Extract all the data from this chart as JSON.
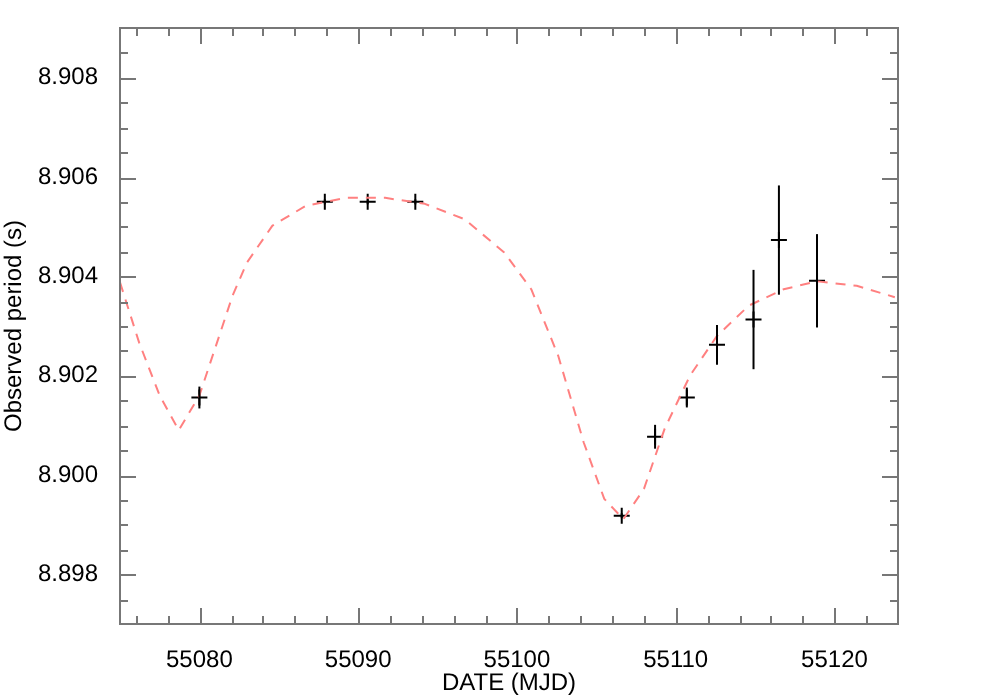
{
  "chart_data": {
    "type": "scatter",
    "xlabel": "DATE (MJD)",
    "ylabel": "Observed period (s)",
    "xlim": [
      55075,
      55124
    ],
    "ylim": [
      8.897,
      8.909
    ],
    "xticks": [
      {
        "value": 55076,
        "label": null
      },
      {
        "value": 55078,
        "label": null
      },
      55080,
      {
        "value": 55082,
        "label": null
      },
      {
        "value": 55084,
        "label": null
      },
      {
        "value": 55086,
        "label": null
      },
      {
        "value": 55088,
        "label": null
      },
      55090,
      {
        "value": 55092,
        "label": null
      },
      {
        "value": 55094,
        "label": null
      },
      {
        "value": 55096,
        "label": null
      },
      {
        "value": 55098,
        "label": null
      },
      55100,
      {
        "value": 55102,
        "label": null
      },
      {
        "value": 55104,
        "label": null
      },
      {
        "value": 55106,
        "label": null
      },
      {
        "value": 55108,
        "label": null
      },
      55110,
      {
        "value": 55112,
        "label": null
      },
      {
        "value": 55114,
        "label": null
      },
      {
        "value": 55116,
        "label": null
      },
      {
        "value": 55118,
        "label": null
      },
      55120,
      {
        "value": 55122,
        "label": null
      }
    ],
    "yticks": [
      {
        "value": 8.8975,
        "label": null
      },
      {
        "value": 8.898,
        "label": "8.898"
      },
      {
        "value": 8.8985,
        "label": null
      },
      {
        "value": 8.899,
        "label": null
      },
      {
        "value": 8.8995,
        "label": null
      },
      {
        "value": 8.9,
        "label": "8.900"
      },
      {
        "value": 8.9005,
        "label": null
      },
      {
        "value": 8.901,
        "label": null
      },
      {
        "value": 8.9015,
        "label": null
      },
      {
        "value": 8.902,
        "label": "8.902"
      },
      {
        "value": 8.9025,
        "label": null
      },
      {
        "value": 8.903,
        "label": null
      },
      {
        "value": 8.9035,
        "label": null
      },
      {
        "value": 8.904,
        "label": "8.904"
      },
      {
        "value": 8.9045,
        "label": null
      },
      {
        "value": 8.905,
        "label": null
      },
      {
        "value": 8.9055,
        "label": null
      },
      {
        "value": 8.906,
        "label": "8.906"
      },
      {
        "value": 8.9065,
        "label": null
      },
      {
        "value": 8.907,
        "label": null
      },
      {
        "value": 8.9075,
        "label": null
      },
      {
        "value": 8.908,
        "label": "8.908"
      },
      {
        "value": 8.9085,
        "label": null
      }
    ],
    "grid": false,
    "legend": false,
    "series": [
      {
        "type": "line",
        "line_style": "dashed",
        "marker": "none",
        "color": "#ff8080",
        "x": [
          55075.0,
          55076.2,
          55077.5,
          55078.7,
          55080.0,
          55082.1,
          55083.0,
          55084.6,
          55086.7,
          55089.2,
          55091.7,
          55094.2,
          55096.7,
          55099.2,
          55100.9,
          55102.6,
          55104.2,
          55105.5,
          55106.7,
          55108.0,
          55109.3,
          55110.9,
          55112.6,
          55114.6,
          55116.8,
          55118.9,
          55121.4,
          55123.8
        ],
        "values": [
          8.90388,
          8.90267,
          8.9016,
          8.9009,
          8.9016,
          8.90362,
          8.90428,
          8.90502,
          8.90542,
          8.90558,
          8.90558,
          8.90546,
          8.90515,
          8.90448,
          8.90374,
          8.9024,
          8.90066,
          8.89952,
          8.89911,
          8.89972,
          8.90093,
          8.902,
          8.9028,
          8.90341,
          8.90374,
          8.9039,
          8.90381,
          8.90358
        ]
      },
      {
        "type": "scatter",
        "marker": "cross",
        "color": "#000000",
        "x": [
          55080.0,
          55087.9,
          55090.6,
          55093.6,
          55106.6,
          55108.7,
          55110.7,
          55112.6,
          55114.9,
          55116.5,
          55118.9
        ],
        "values": [
          8.90156,
          8.9055,
          8.9055,
          8.9055,
          8.89918,
          8.90077,
          8.90156,
          8.90262,
          8.90313,
          8.90473,
          8.90391
        ],
        "errors": [
          0.00022,
          5e-05,
          5e-05,
          5e-05,
          5e-05,
          0.00024,
          0.0002,
          0.0004,
          0.001,
          0.0011,
          0.00094
        ]
      }
    ]
  }
}
